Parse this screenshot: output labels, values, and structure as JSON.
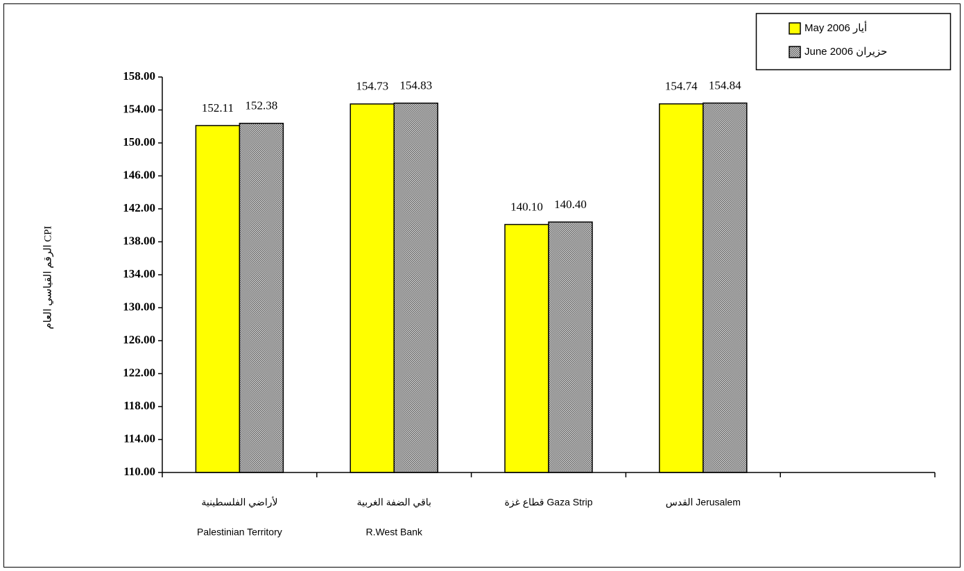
{
  "chart_data": {
    "type": "bar",
    "y_label": "CPI الرقم القياسي العام",
    "categories": [
      [
        "لأراضي الفلسطينية",
        "Palestinian Territory"
      ],
      [
        "باقي الضفة الغربية",
        "R.West Bank"
      ],
      [
        "قطاع غزة Gaza Strip"
      ],
      [
        "القدس Jerusalem"
      ],
      null
    ],
    "series": [
      {
        "name": "May 2006 أيار",
        "color": "#ffff00",
        "values": [
          152.11,
          154.73,
          140.1,
          154.74,
          null
        ],
        "value_labels": [
          "152.11",
          "154.73",
          "140.10",
          "154.74",
          null
        ]
      },
      {
        "name": "June 2006 حزيران",
        "color": "#9a9a9a",
        "pattern": "dots",
        "values": [
          152.38,
          154.83,
          140.4,
          154.84,
          null
        ],
        "value_labels": [
          "152.38",
          "154.83",
          "140.40",
          "154.84",
          null
        ]
      }
    ],
    "ylim": [
      110,
      158
    ],
    "yticks": [
      {
        "value": 110,
        "label": "110.00"
      },
      {
        "value": 114,
        "label": "114.00"
      },
      {
        "value": 118,
        "label": "118.00"
      },
      {
        "value": 122,
        "label": "122.00"
      },
      {
        "value": 126,
        "label": "126.00"
      },
      {
        "value": 130,
        "label": "130.00"
      },
      {
        "value": 134,
        "label": "134.00"
      },
      {
        "value": 138,
        "label": "138.00"
      },
      {
        "value": 142,
        "label": "142.00"
      },
      {
        "value": 146,
        "label": "146.00"
      },
      {
        "value": 150,
        "label": "150.00"
      },
      {
        "value": 154,
        "label": "154.00"
      },
      {
        "value": 158,
        "label": "158.00"
      }
    ],
    "legend": "top-right",
    "grid": false
  }
}
